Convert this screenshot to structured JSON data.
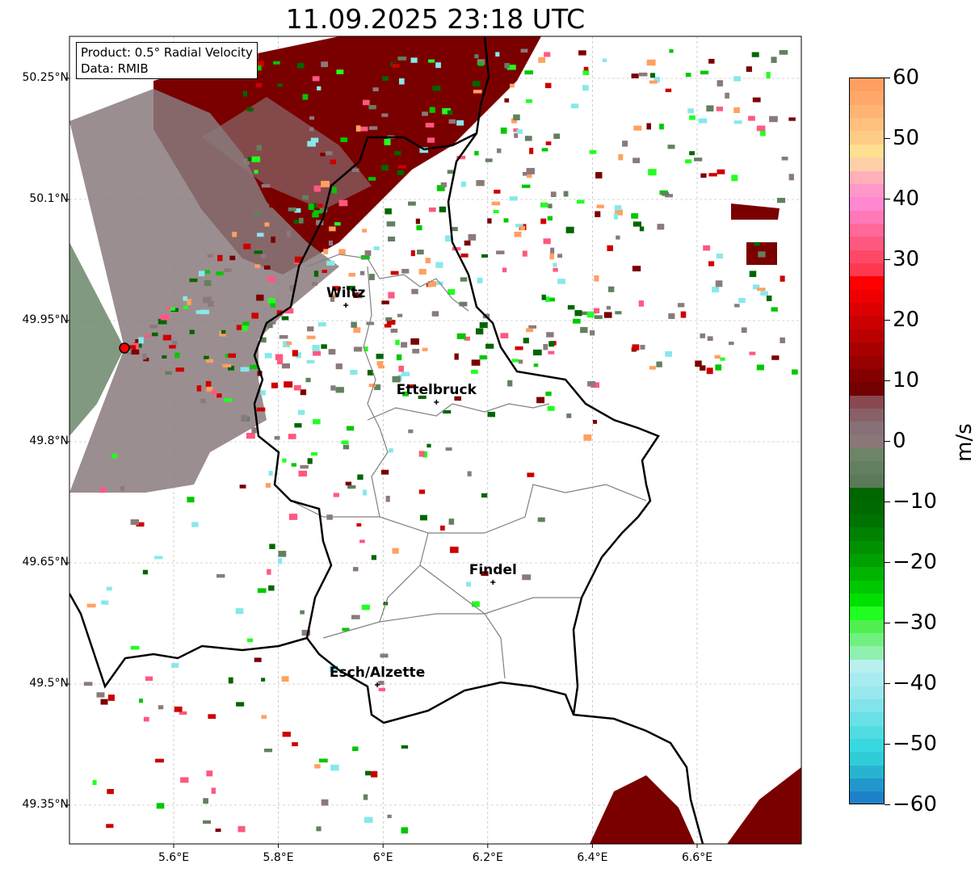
{
  "title": "11.09.2025 23:18 UTC",
  "info": {
    "product": "Product: 0.5° Radial Velocity",
    "data": "Data: RMIB"
  },
  "axes": {
    "lat_ticks": [
      {
        "v": 50.25,
        "label": "50.25°N"
      },
      {
        "v": 50.1,
        "label": "50.1°N"
      },
      {
        "v": 49.95,
        "label": "49.95°N"
      },
      {
        "v": 49.8,
        "label": "49.8°N"
      },
      {
        "v": 49.65,
        "label": "49.65°N"
      },
      {
        "v": 49.5,
        "label": "49.5°N"
      },
      {
        "v": 49.35,
        "label": "49.35°N"
      }
    ],
    "lon_ticks": [
      {
        "v": 5.6,
        "label": "5.6°E"
      },
      {
        "v": 5.8,
        "label": "5.8°E"
      },
      {
        "v": 6.0,
        "label": "6°E"
      },
      {
        "v": 6.2,
        "label": "6.2°E"
      },
      {
        "v": 6.4,
        "label": "6.4°E"
      },
      {
        "v": 6.6,
        "label": "6.6°E"
      }
    ]
  },
  "radar_site": {
    "lon": 5.506,
    "lat": 49.916,
    "color": "#ff0000"
  },
  "cities": [
    {
      "name": "Wiltz",
      "lon": 5.929,
      "lat": 49.969
    },
    {
      "name": "Ettelbruck",
      "lon": 6.102,
      "lat": 49.849
    },
    {
      "name": "Findel",
      "lon": 6.21,
      "lat": 49.626
    },
    {
      "name": "Esch/Alzette",
      "lon": 5.989,
      "lat": 49.499
    }
  ],
  "colorbar": {
    "unit": "m/s",
    "min": -60,
    "max": 60,
    "ticks": [
      {
        "v": 60,
        "label": "60"
      },
      {
        "v": 50,
        "label": "50"
      },
      {
        "v": 40,
        "label": "40"
      },
      {
        "v": 30,
        "label": "30"
      },
      {
        "v": 20,
        "label": "20"
      },
      {
        "v": 10,
        "label": "10"
      },
      {
        "v": 0,
        "label": "0"
      },
      {
        "v": -10,
        "label": "−10"
      },
      {
        "v": -20,
        "label": "−20"
      },
      {
        "v": -30,
        "label": "−30"
      },
      {
        "v": -40,
        "label": "−40"
      },
      {
        "v": -50,
        "label": "−50"
      },
      {
        "v": -60,
        "label": "−60"
      }
    ],
    "colors": [
      "#ffa060",
      "#ffa86a",
      "#ffb474",
      "#ffc07e",
      "#ffcc88",
      "#ffe090",
      "#ffd0a8",
      "#ffb0b8",
      "#ff98c8",
      "#ff88d0",
      "#ff78b8",
      "#ff6898",
      "#ff5880",
      "#ff4868",
      "#ff3850",
      "#ff0000",
      "#ee0000",
      "#dd0000",
      "#cc0000",
      "#bb0000",
      "#a80000",
      "#960000",
      "#840000",
      "#720000",
      "#8a4850",
      "#886068",
      "#887078",
      "#8a7878",
      "#6e8468",
      "#628060",
      "#5a7a58",
      "#006600",
      "#006a00",
      "#007200",
      "#008200",
      "#009000",
      "#00a000",
      "#00b400",
      "#00c800",
      "#00e000",
      "#20ff20",
      "#50f050",
      "#70f080",
      "#90f0b0",
      "#b8f0f0",
      "#a8ecf0",
      "#98e8ee",
      "#80e4ea",
      "#68e0e6",
      "#50dce2",
      "#38d8e0",
      "#30ccd8",
      "#28b4d0",
      "#2098cc",
      "#1e82c8"
    ]
  }
}
